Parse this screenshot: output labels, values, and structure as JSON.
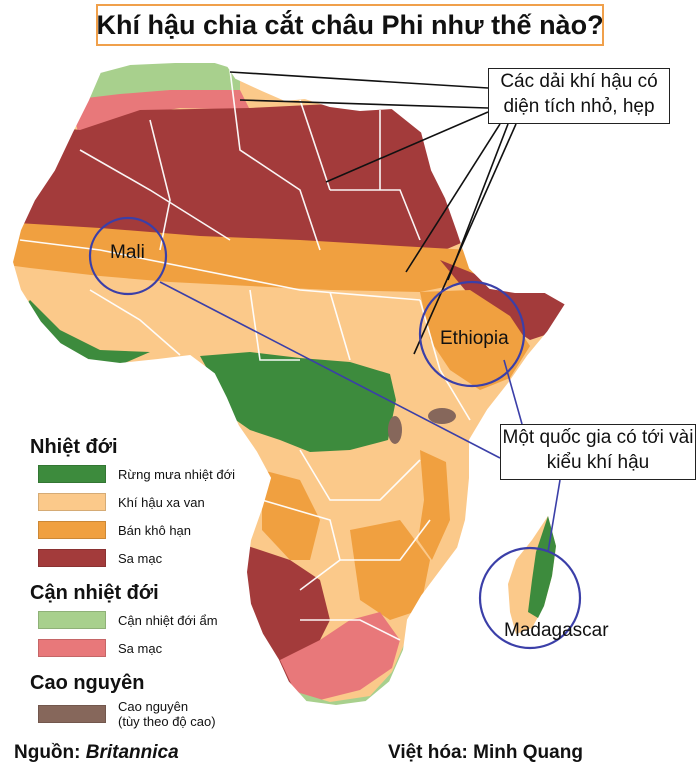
{
  "title": "Khí hậu chia cắt châu Phi như thế nào?",
  "callouts": {
    "narrow_bands": "Các dải khí hậu có diện tích nhỏ, hẹp",
    "multi_climate": "Một quốc gia có tới vài kiểu khí hậu"
  },
  "places": {
    "mali": "Mali",
    "ethiopia": "Ethiopia",
    "madagascar": "Madagascar"
  },
  "legend": {
    "tropical": {
      "heading": "Nhiệt đới",
      "items": [
        {
          "label": "Rừng mưa nhiệt đới",
          "color": "#3d8b3d"
        },
        {
          "label": "Khí hậu xa van",
          "color": "#fbc98a"
        },
        {
          "label": "Bán khô hạn",
          "color": "#f0a040"
        },
        {
          "label": "Sa mạc",
          "color": "#a33b3b"
        }
      ]
    },
    "subtropical": {
      "heading": "Cận nhiệt đới",
      "items": [
        {
          "label": "Cận nhiệt đới ẩm",
          "color": "#a8d08d"
        },
        {
          "label": "Sa mạc",
          "color": "#e8787a"
        }
      ]
    },
    "highland": {
      "heading": "Cao nguyên",
      "items": [
        {
          "label": "Cao nguyên\n(tùy theo độ cao)",
          "color": "#86675b"
        }
      ]
    }
  },
  "footer": {
    "source_label": "Nguồn: ",
    "source_name": "Britannica",
    "credit": "Việt hóa: Minh Quang"
  }
}
